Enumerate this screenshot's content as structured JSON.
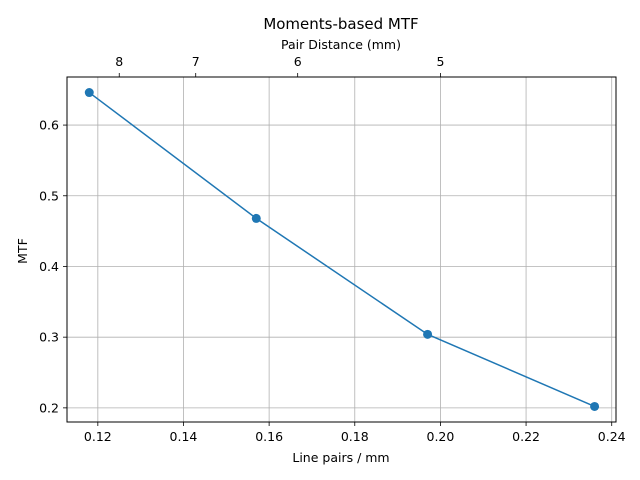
{
  "chart_data": {
    "type": "line",
    "title": "Moments-based MTF",
    "xlabel": "Line pairs / mm",
    "ylabel": "MTF",
    "top_xlabel": "Pair Distance (mm)",
    "xlim": [
      0.1128,
      0.241
    ],
    "ylim": [
      0.18,
      0.668
    ],
    "x_ticks": [
      0.12,
      0.14,
      0.16,
      0.18,
      0.2,
      0.22,
      0.24
    ],
    "x_tick_labels": [
      "0.12",
      "0.14",
      "0.16",
      "0.18",
      "0.20",
      "0.22",
      "0.24"
    ],
    "y_ticks": [
      0.2,
      0.3,
      0.4,
      0.5,
      0.6
    ],
    "y_tick_labels": [
      "0.2",
      "0.3",
      "0.4",
      "0.5",
      "0.6"
    ],
    "top_ticks": [
      8,
      7,
      6,
      5
    ],
    "top_tick_labels": [
      "8",
      "7",
      "6",
      "5"
    ],
    "grid": true,
    "series": [
      {
        "x": [
          0.118,
          0.157,
          0.197,
          0.236
        ],
        "y": [
          0.646,
          0.468,
          0.304,
          0.202
        ],
        "color": "#1f77b4",
        "marker": "circle"
      }
    ]
  }
}
